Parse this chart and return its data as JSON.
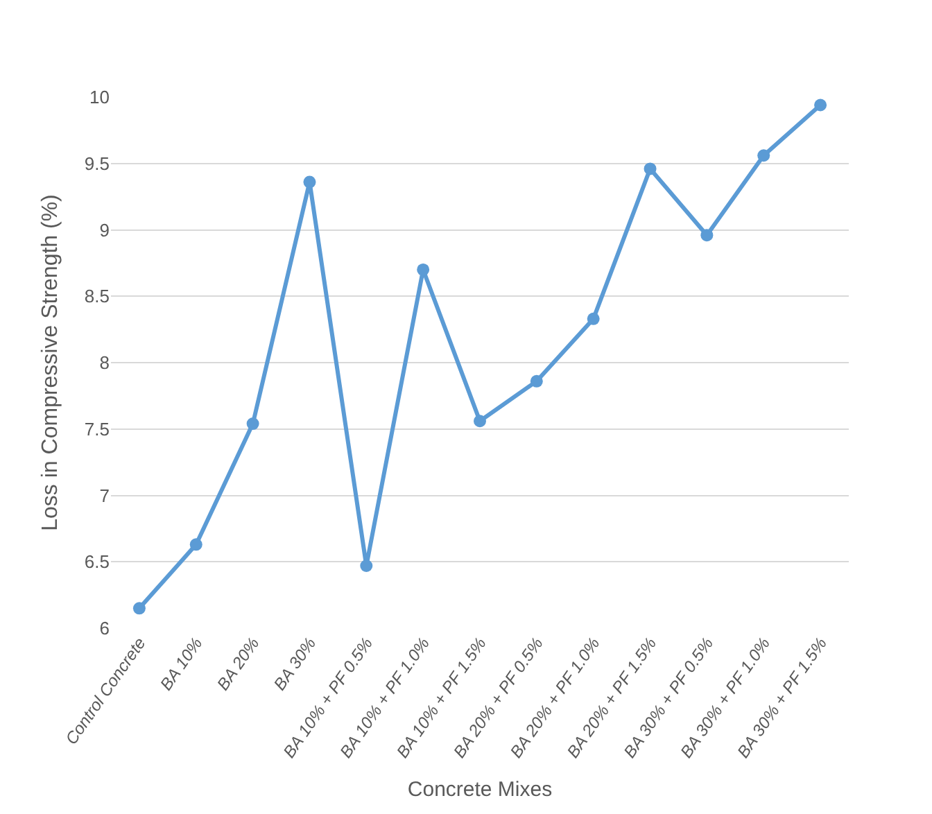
{
  "chart_data": {
    "type": "line",
    "xlabel": "Concrete Mixes",
    "ylabel": "Loss in Compressive Strength (%)",
    "categories": [
      "Control Concrete",
      "BA 10%",
      "BA 20%",
      "BA 30%",
      "BA 10% + PF 0.5%",
      "BA 10% + PF 1.0%",
      "BA 10% + PF 1.5%",
      "BA 20% + PF 0.5%",
      "BA 20% + PF 1.0%",
      "BA 20% + PF 1.5%",
      "BA 30% + PF 0.5%",
      "BA 30% + PF 1.0%",
      "BA 30% + PF 1.5%"
    ],
    "series": [
      {
        "color": "#5b9bd5",
        "values": [
          6.15,
          6.63,
          7.54,
          9.36,
          6.47,
          8.7,
          7.56,
          7.86,
          8.33,
          9.46,
          8.96,
          9.56,
          9.94
        ]
      }
    ],
    "ylim": [
      6,
      10
    ],
    "yticks": [
      6,
      6.5,
      7,
      7.5,
      8,
      8.5,
      9,
      9.5,
      10
    ],
    "grid": "y",
    "marker": "circle",
    "line_style": "solid",
    "legend": false
  }
}
